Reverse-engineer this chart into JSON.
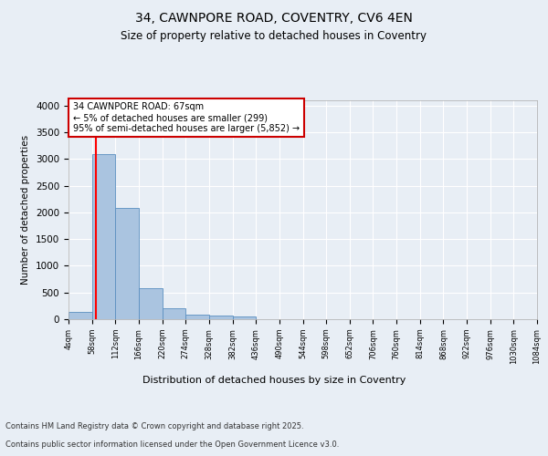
{
  "title_line1": "34, CAWNPORE ROAD, COVENTRY, CV6 4EN",
  "title_line2": "Size of property relative to detached houses in Coventry",
  "xlabel": "Distribution of detached houses by size in Coventry",
  "ylabel": "Number of detached properties",
  "footer_line1": "Contains HM Land Registry data © Crown copyright and database right 2025.",
  "footer_line2": "Contains public sector information licensed under the Open Government Licence v3.0.",
  "annotation_line1": "34 CAWNPORE ROAD: 67sqm",
  "annotation_line2": "← 5% of detached houses are smaller (299)",
  "annotation_line3": "95% of semi-detached houses are larger (5,852) →",
  "property_size": 67,
  "bar_edges": [
    4,
    58,
    112,
    166,
    220,
    274,
    328,
    382,
    436,
    490,
    544,
    598,
    652,
    706,
    760,
    814,
    868,
    922,
    976,
    1030,
    1084
  ],
  "bar_values": [
    130,
    3100,
    2090,
    575,
    200,
    80,
    60,
    55,
    0,
    0,
    0,
    0,
    0,
    0,
    0,
    0,
    0,
    0,
    0,
    0
  ],
  "bar_color": "#aac4e0",
  "bar_edge_color": "#5a8fc0",
  "red_line_x": 67,
  "ylim": [
    0,
    4100
  ],
  "yticks": [
    0,
    500,
    1000,
    1500,
    2000,
    2500,
    3000,
    3500,
    4000
  ],
  "background_color": "#e8eef5",
  "plot_bg_color": "#e8eef5",
  "grid_color": "#ffffff",
  "annotation_box_edge": "#cc0000",
  "annotation_box_face": "#ffffff"
}
